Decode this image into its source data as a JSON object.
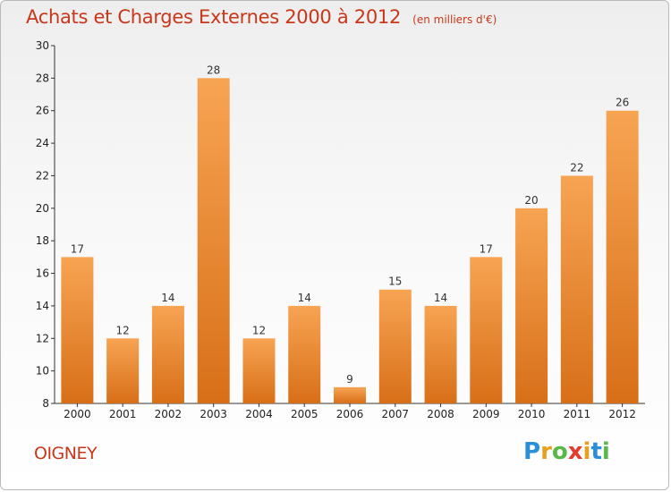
{
  "header": {
    "title": "Achats et Charges Externes 2000 à 2012",
    "subtitle": "(en milliers d'€)"
  },
  "footer": {
    "commune": "OIGNEY",
    "logo": {
      "text": "Proxiti",
      "letters": [
        "P",
        "r",
        "o",
        "x",
        "i",
        "t",
        "i"
      ],
      "colors": [
        "#2a8fd6",
        "#e8a020",
        "#58b848",
        "#e23c2b",
        "#e8a020",
        "#2a8fd6",
        "#58b848"
      ]
    }
  },
  "chart_data": {
    "type": "bar",
    "title": "Achats et Charges Externes 2000 à 2012",
    "subtitle": "(en milliers d'€)",
    "categories": [
      "2000",
      "2001",
      "2002",
      "2003",
      "2004",
      "2005",
      "2006",
      "2007",
      "2008",
      "2009",
      "2010",
      "2011",
      "2012"
    ],
    "values": [
      17,
      12,
      14,
      28,
      12,
      14,
      9,
      15,
      14,
      17,
      20,
      22,
      26
    ],
    "ylim": [
      8,
      30
    ],
    "yticks": [
      8,
      10,
      12,
      14,
      16,
      18,
      20,
      22,
      24,
      26,
      28,
      30
    ],
    "xlabel": "",
    "ylabel": "",
    "grid": false,
    "legend": "none",
    "bar_color_light": "#f7a453",
    "bar_color_dark": "#d86f18"
  }
}
